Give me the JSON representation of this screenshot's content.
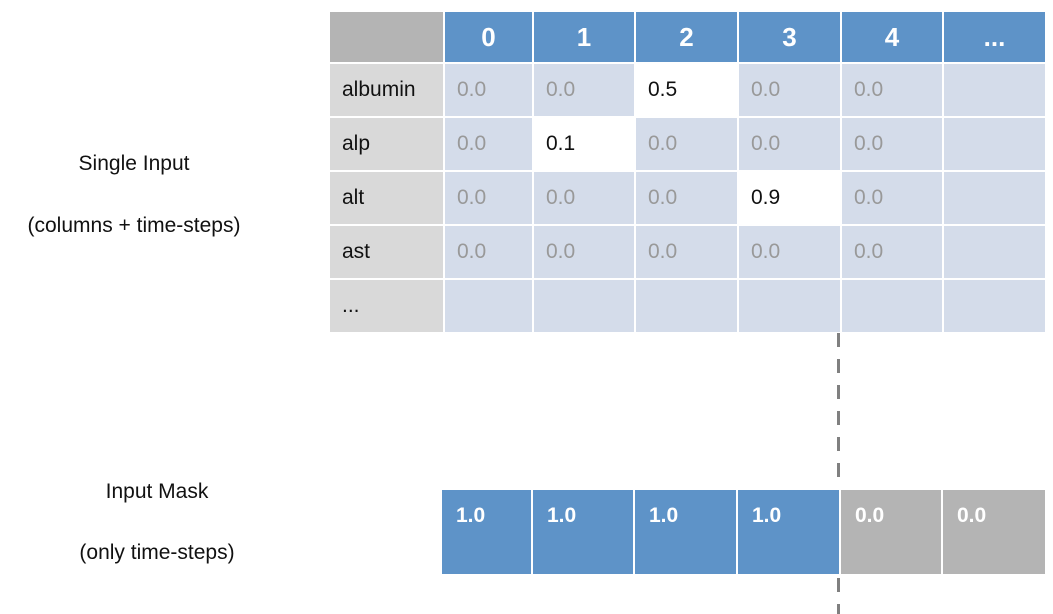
{
  "labels": {
    "single_input": "Single Input",
    "single_input_sub": "(columns + time-steps)",
    "input_mask": "Input Mask",
    "input_mask_sub": "(only time-steps)"
  },
  "grid": {
    "columns": [
      "0",
      "1",
      "2",
      "3",
      "4",
      "..."
    ],
    "rows": [
      {
        "name": "albumin",
        "values": [
          "0.0",
          "0.0",
          "0.5",
          "0.0",
          "0.0",
          ""
        ],
        "highlight": [
          false,
          false,
          true,
          false,
          false,
          false
        ]
      },
      {
        "name": "alp",
        "values": [
          "0.0",
          "0.1",
          "0.0",
          "0.0",
          "0.0",
          ""
        ],
        "highlight": [
          false,
          true,
          false,
          false,
          false,
          false
        ]
      },
      {
        "name": "alt",
        "values": [
          "0.0",
          "0.0",
          "0.0",
          "0.9",
          "0.0",
          ""
        ],
        "highlight": [
          false,
          false,
          false,
          true,
          false,
          false
        ]
      },
      {
        "name": "ast",
        "values": [
          "0.0",
          "0.0",
          "0.0",
          "0.0",
          "0.0",
          ""
        ],
        "highlight": [
          false,
          false,
          false,
          false,
          false,
          false
        ]
      },
      {
        "name": "...",
        "values": [
          "",
          "",
          "",
          "",
          "",
          ""
        ],
        "highlight": [
          false,
          false,
          false,
          false,
          false,
          false
        ]
      }
    ]
  },
  "mask": {
    "values": [
      "1.0",
      "1.0",
      "1.0",
      "1.0",
      "0.0",
      "0.0"
    ],
    "active": [
      true,
      true,
      true,
      true,
      false,
      false
    ]
  },
  "colors": {
    "header_blue": "#5e93c8",
    "cell_light_blue": "#d4dcea",
    "corner_gray": "#b4b4b4",
    "row_header_gray": "#d9d9d9",
    "divider_gray": "#808080"
  }
}
